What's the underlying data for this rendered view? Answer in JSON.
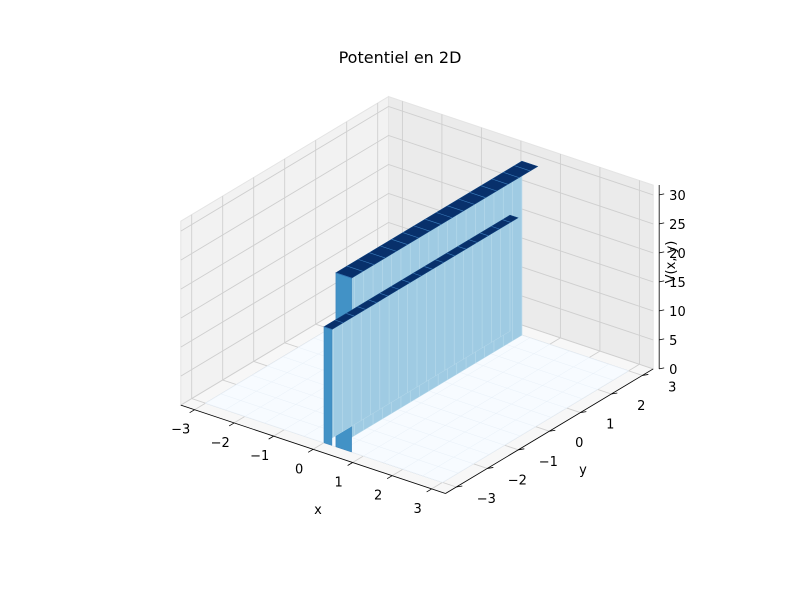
{
  "chart_data": {
    "type": "surface3d",
    "title": "Potentiel en 2D",
    "xlabel": "x",
    "ylabel": "y",
    "zlabel": "V(x, y)",
    "x_ticks": [
      -3,
      -2,
      -1,
      0,
      1,
      2,
      3
    ],
    "y_ticks": [
      -3,
      -2,
      -1,
      0,
      1,
      2,
      3
    ],
    "z_ticks": [
      0,
      5,
      10,
      15,
      20,
      25,
      30
    ],
    "x_tick_labels": [
      "−3",
      "−2",
      "−1",
      "0",
      "1",
      "2",
      "3"
    ],
    "y_tick_labels": [
      "−3",
      "−2",
      "−1",
      "0",
      "1",
      "2",
      "3"
    ],
    "z_tick_labels": [
      "0",
      "5",
      "10",
      "15",
      "20",
      "25",
      "30"
    ],
    "xlim": [
      -3,
      3
    ],
    "ylim": [
      -3,
      3
    ],
    "zlim": [
      0,
      30
    ],
    "colormap": "Blues",
    "grid": true,
    "barriers": [
      {
        "x_range": [
          0.0,
          0.2
        ],
        "y_range": [
          -3,
          3
        ],
        "height": 20
      },
      {
        "x_range": [
          0.3,
          0.7
        ],
        "y_range": [
          -3,
          3
        ],
        "height": 30
      }
    ],
    "base_value": 0
  },
  "colors": {
    "pane_left": "#f2f2f2",
    "pane_back": "#ebebeb",
    "pane_floor": "#f7f7f7",
    "grid": "#cfcfcf",
    "surface_low": "#f7fbff",
    "surface_mid": "#9ecae1",
    "surface_high": "#08306b",
    "wall_face": "#9fcbe3",
    "wall_side": "#4292c6"
  }
}
